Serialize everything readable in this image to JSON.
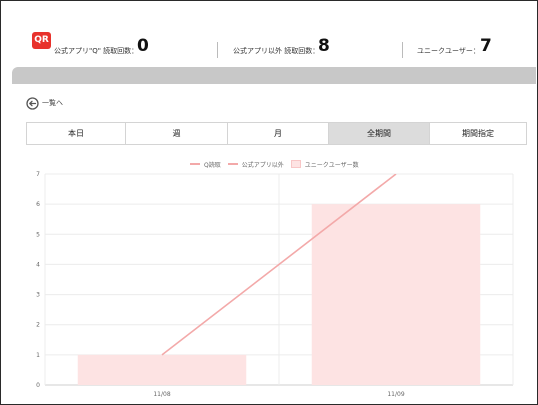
{
  "stats": {
    "qr_badge": "QR",
    "official_label": "公式アプリ\"Q\" 読取回数：",
    "official_value": "0",
    "other_label": "公式アプリ以外 読取回数：",
    "other_value": "8",
    "users_label": "ユニークユーザー：",
    "users_value": "7"
  },
  "back_link": "一覧へ",
  "tabs": [
    {
      "label": "本日",
      "active": false
    },
    {
      "label": "週",
      "active": false
    },
    {
      "label": "月",
      "active": false
    },
    {
      "label": "全期間",
      "active": true
    },
    {
      "label": "期間指定",
      "active": false
    }
  ],
  "legend": {
    "q_reads": "Q読取",
    "other_apps": "公式アプリ以外",
    "unique_users": "ユニークユーザー数"
  },
  "colors": {
    "accent_red": "#e8322c",
    "line": "#f3a9a9",
    "bar_fill": "#fde3e3",
    "active_tab": "#dcdcdc"
  },
  "chart_data": {
    "type": "bar",
    "categories": [
      "11/08",
      "11/09"
    ],
    "ylim": [
      0,
      7
    ],
    "yticks": [
      "0",
      "1",
      "2",
      "3",
      "4",
      "5",
      "6",
      "7"
    ],
    "series": [
      {
        "name": "Q読取",
        "type": "line",
        "values": [
          0,
          0
        ]
      },
      {
        "name": "公式アプリ以外",
        "type": "line",
        "values": [
          1,
          7
        ]
      },
      {
        "name": "ユニークユーザー数",
        "type": "bar",
        "values": [
          1,
          6
        ]
      }
    ],
    "grid": true,
    "legend_position": "top"
  }
}
